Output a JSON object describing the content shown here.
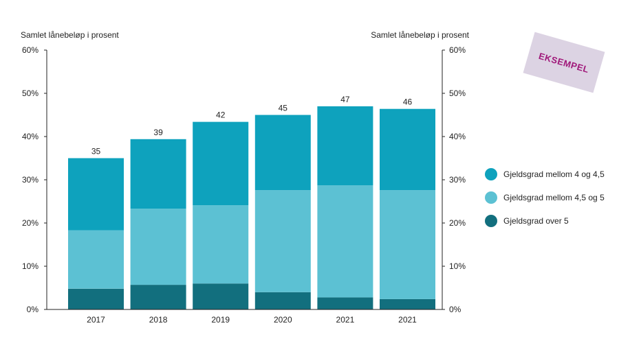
{
  "stamp": {
    "text": "EKSEMPEL"
  },
  "chart_data": {
    "type": "bar",
    "stacked": true,
    "categories": [
      "2017",
      "2018",
      "2019",
      "2020",
      "2021",
      "2021"
    ],
    "series": [
      {
        "name": "Gjeldsgrad over 5",
        "color": "#126f7e",
        "values": [
          4.8,
          5.7,
          6.0,
          4.0,
          2.8,
          2.4
        ]
      },
      {
        "name": "Gjeldsgrad mellom 4,5 og 5",
        "color": "#5cc1d3",
        "values": [
          13.5,
          17.6,
          18.1,
          23.6,
          25.9,
          25.2
        ]
      },
      {
        "name": "Gjeldsgrad mellom 4 og 4,5",
        "color": "#0ea2bd",
        "values": [
          16.7,
          16.1,
          19.3,
          17.4,
          18.3,
          18.8
        ]
      }
    ],
    "totals": [
      "35",
      "39",
      "42",
      "45",
      "47",
      "46"
    ],
    "ylim": [
      0,
      60
    ],
    "yticks": [
      0,
      10,
      20,
      30,
      40,
      50,
      60
    ],
    "ytick_labels": [
      "0%",
      "10%",
      "20%",
      "30%",
      "40%",
      "50%",
      "60%"
    ],
    "ylabel_left": "Samlet lånebeløp i prosent",
    "ylabel_right": "Samlet lånebeløp i prosent",
    "legend": {
      "position": "right",
      "entries": [
        {
          "label": "Gjeldsgrad mellom 4 og 4,5",
          "color": "#0ea2bd"
        },
        {
          "label": "Gjeldsgrad mellom 4,5 og 5",
          "color": "#5cc1d3"
        },
        {
          "label": "Gjeldsgrad over 5",
          "color": "#126f7e"
        }
      ]
    }
  }
}
